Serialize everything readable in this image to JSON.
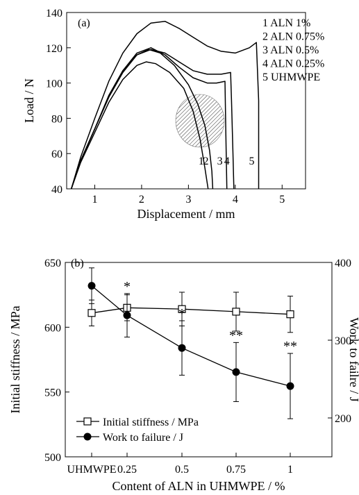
{
  "chart_data": [
    {
      "type": "line",
      "panel_label": "(a)",
      "xlabel": "Displacement / mm",
      "ylabel": "Load / N",
      "xlim": [
        0.4,
        5.5
      ],
      "ylim": [
        40,
        140
      ],
      "x_ticks": [
        "1",
        "2",
        "3",
        "4",
        "5"
      ],
      "y_ticks": [
        "40",
        "60",
        "80",
        "100",
        "120",
        "140"
      ],
      "legend": [
        "1 ALN 1%",
        "2 ALN 0.75%",
        "3 ALN 0.5%",
        "4 ALN 0.25%",
        "5 UHMWPE"
      ],
      "curve_end_labels": [
        "1",
        "2",
        "3",
        "4",
        "5"
      ],
      "series": [
        {
          "name": "1 ALN 1%",
          "x": [
            0.5,
            0.7,
            1.0,
            1.3,
            1.6,
            1.9,
            2.1,
            2.3,
            2.6,
            2.9,
            3.1,
            3.25,
            3.35,
            3.42
          ],
          "y": [
            40,
            55,
            72,
            89,
            102,
            110,
            112,
            111,
            106,
            97,
            84,
            68,
            52,
            40
          ]
        },
        {
          "name": "2 ALN 0.75%",
          "x": [
            0.5,
            0.7,
            1.0,
            1.3,
            1.6,
            1.9,
            2.15,
            2.4,
            2.7,
            3.0,
            3.2,
            3.35,
            3.45,
            3.5,
            3.52
          ],
          "y": [
            40,
            56,
            74,
            92,
            106,
            116,
            119,
            117,
            110,
            99,
            88,
            76,
            62,
            50,
            40
          ]
        },
        {
          "name": "3 ALN 0.5%",
          "x": [
            0.5,
            0.7,
            1.0,
            1.3,
            1.6,
            1.9,
            2.2,
            2.5,
            2.8,
            3.1,
            3.4,
            3.6,
            3.78,
            3.8,
            3.82
          ],
          "y": [
            40,
            56,
            74,
            93,
            107,
            117,
            120,
            116,
            109,
            103,
            100,
            100,
            101,
            70,
            40
          ]
        },
        {
          "name": "4 ALN 0.25%",
          "x": [
            0.5,
            0.7,
            1.0,
            1.3,
            1.6,
            1.9,
            2.2,
            2.5,
            2.8,
            3.1,
            3.4,
            3.7,
            3.9,
            3.92,
            3.95,
            3.97
          ],
          "y": [
            40,
            56,
            74,
            92,
            107,
            116,
            119,
            117,
            112,
            107,
            105,
            105,
            106,
            90,
            60,
            40
          ]
        },
        {
          "name": "5 UHMWPE",
          "x": [
            0.5,
            0.7,
            1.0,
            1.3,
            1.6,
            1.9,
            2.2,
            2.5,
            2.8,
            3.1,
            3.4,
            3.7,
            4.0,
            4.3,
            4.45,
            4.5,
            4.5
          ],
          "y": [
            40,
            58,
            80,
            101,
            117,
            128,
            134,
            135,
            131,
            126,
            121,
            118,
            117,
            120,
            123,
            90,
            40
          ]
        }
      ]
    },
    {
      "type": "line",
      "panel_label": "(b)",
      "xlabel": "Content of ALN in UHMWPE / %",
      "ylabel": "Initial stiffness / MPa",
      "y2label": "Work to failre / J",
      "categories": [
        "UHMWPE",
        "0.25",
        "0.5",
        "0.75",
        "1"
      ],
      "ylim": [
        500,
        650
      ],
      "y2lim": [
        150,
        400
      ],
      "y_ticks": [
        "500",
        "550",
        "600",
        "650"
      ],
      "y2_ticks": [
        "200",
        "300",
        "400"
      ],
      "legend_position": "lower-left",
      "series": [
        {
          "name": "Initial stiffness / MPa",
          "axis": "left",
          "marker": "open-square",
          "values": [
            611,
            615,
            614,
            612,
            610
          ],
          "errors": [
            10,
            10,
            13,
            15,
            14
          ]
        },
        {
          "name": "Work to failure / J",
          "axis": "right",
          "marker": "filled-circle",
          "values": [
            370,
            332,
            290,
            259,
            241
          ],
          "errors": [
            23,
            28,
            35,
            38,
            42
          ]
        }
      ],
      "significance_markers": [
        "",
        "*",
        "*",
        "**",
        "**"
      ]
    }
  ]
}
